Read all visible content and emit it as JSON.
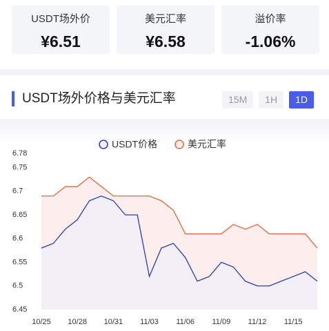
{
  "cards": [
    {
      "label": "USDT场外价",
      "value": "¥6.51"
    },
    {
      "label": "美元汇率",
      "value": "¥6.58"
    },
    {
      "label": "溢价率",
      "value": "-1.06%"
    }
  ],
  "panel": {
    "title": "USDT场外价格与美元汇率",
    "buttons": [
      "15M",
      "1H",
      "1D"
    ],
    "active": "1D"
  },
  "chart_data": {
    "type": "line",
    "categories": [
      "10/25",
      null,
      null,
      "10/28",
      null,
      null,
      "10/31",
      null,
      null,
      "11/03",
      null,
      null,
      "11/06",
      null,
      null,
      "11/09",
      null,
      null,
      "11/12",
      null,
      null,
      "11/15",
      null,
      null
    ],
    "series": [
      {
        "name": "USDT价格",
        "color": "#2b3bb0",
        "fill": "#f2eff6",
        "values": [
          6.58,
          6.59,
          6.62,
          6.64,
          6.68,
          6.69,
          6.68,
          6.65,
          6.65,
          6.52,
          6.58,
          6.59,
          6.56,
          6.51,
          6.52,
          6.55,
          6.54,
          6.51,
          6.5,
          6.5,
          6.51,
          6.52,
          6.53,
          6.51
        ]
      },
      {
        "name": "美元汇率",
        "color": "#e4693d",
        "fill": "#fbeeec",
        "values": [
          6.69,
          6.69,
          6.71,
          6.71,
          6.73,
          6.71,
          6.69,
          6.69,
          6.69,
          6.69,
          6.68,
          6.66,
          6.61,
          6.61,
          6.61,
          6.61,
          6.63,
          6.62,
          6.63,
          6.61,
          6.61,
          6.61,
          6.61,
          6.58
        ]
      }
    ],
    "ylim": [
      6.45,
      6.78
    ],
    "yticks": [
      6.45,
      6.5,
      6.55,
      6.6,
      6.65,
      6.7,
      6.75,
      6.78
    ],
    "legend": "top"
  }
}
